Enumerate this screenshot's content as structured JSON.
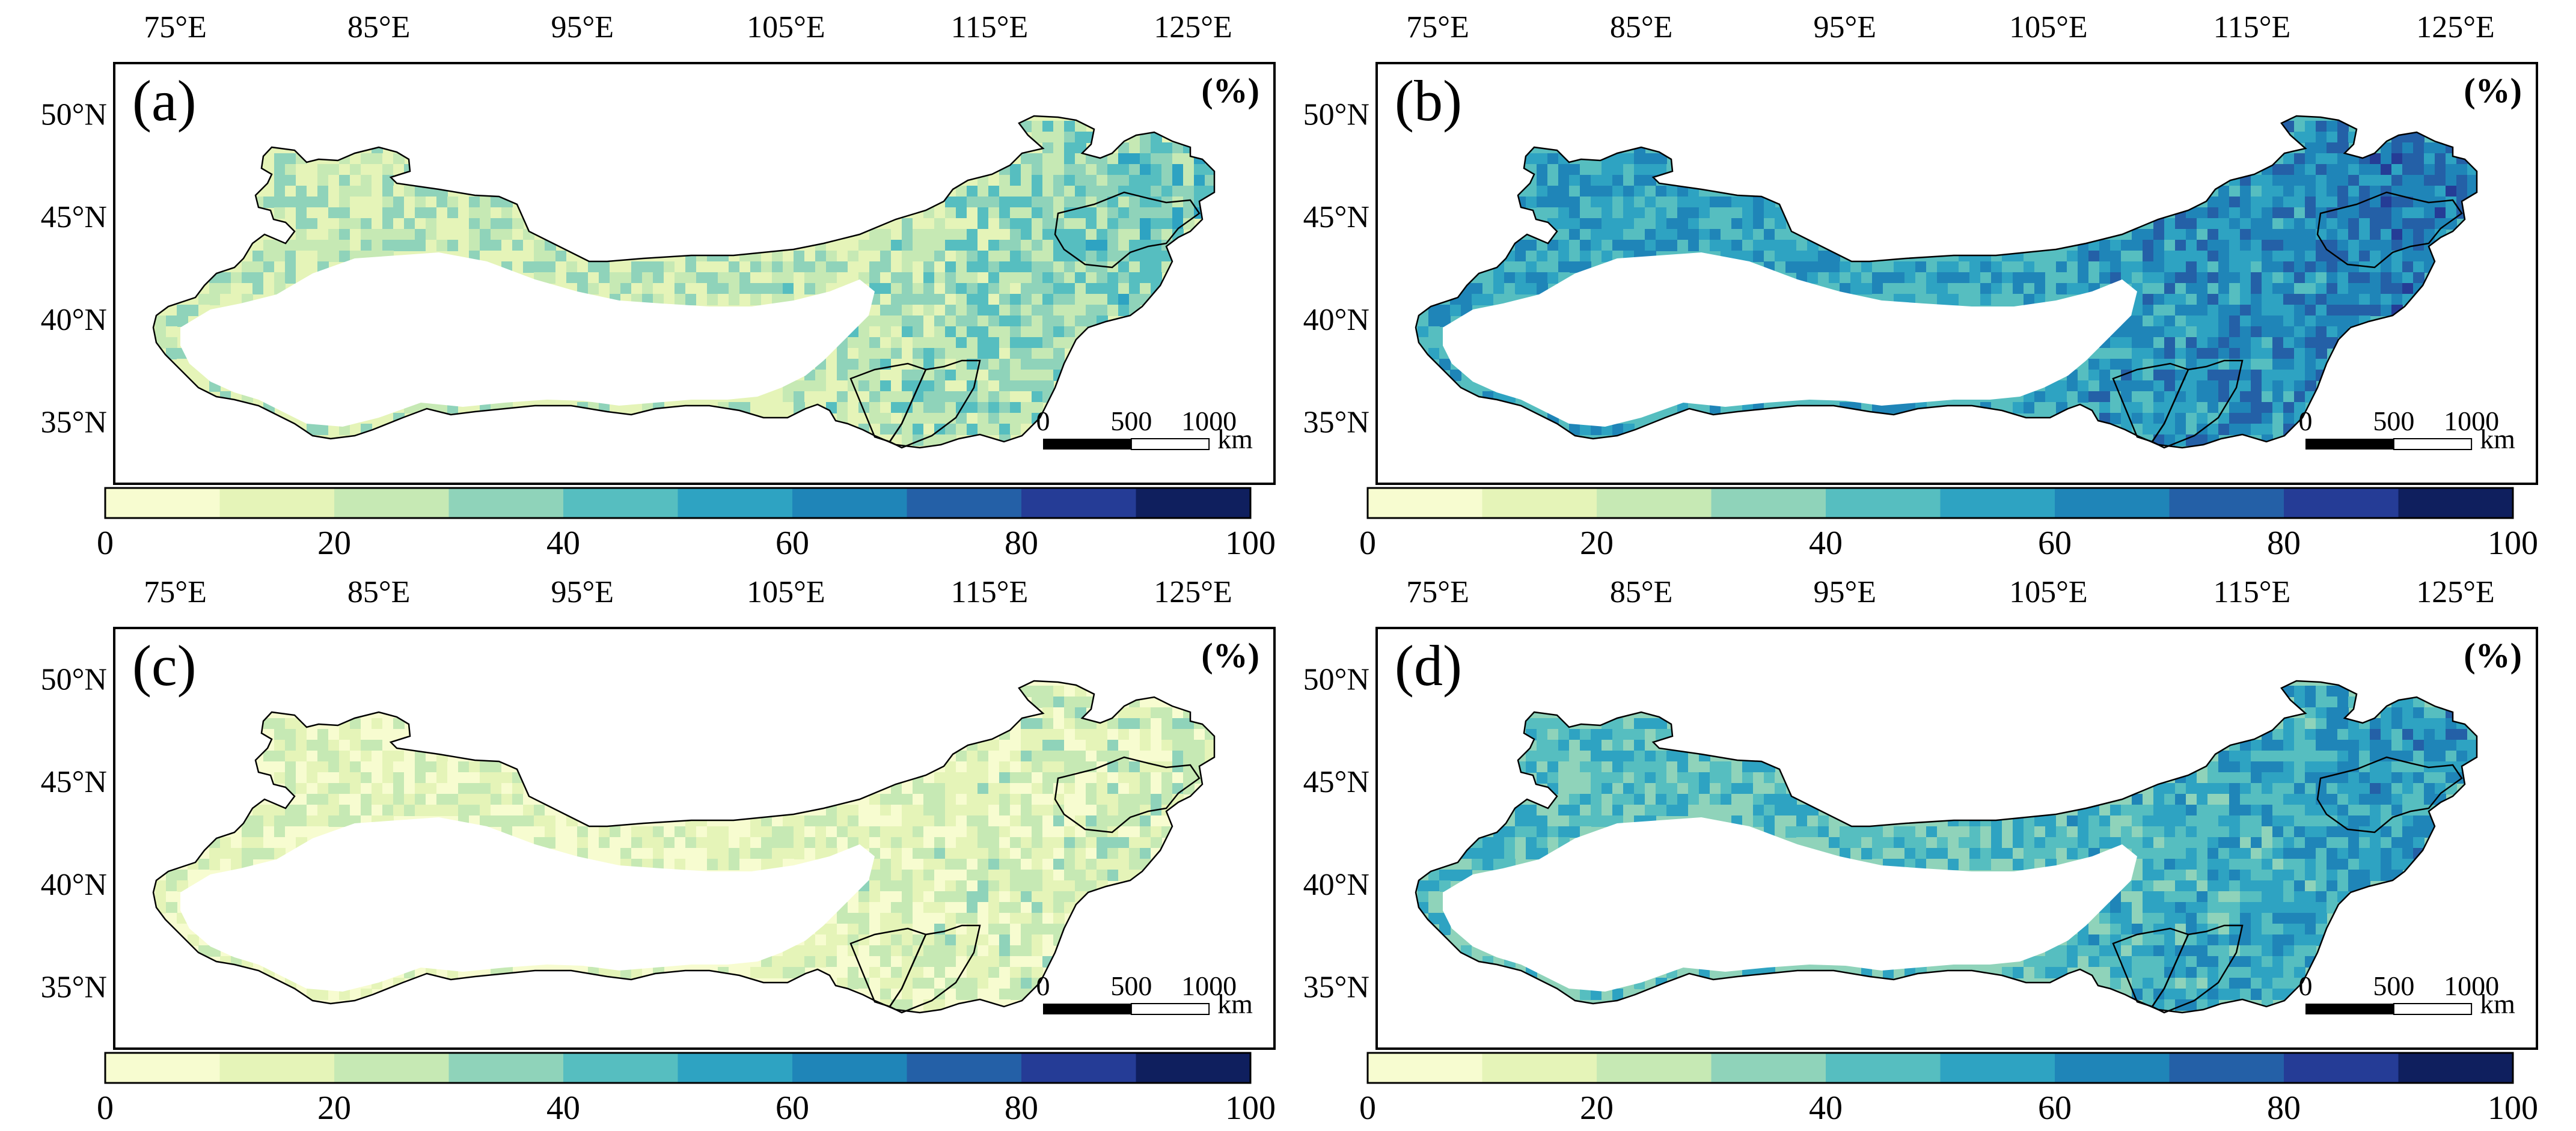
{
  "figure": {
    "lon_ticks": [
      "75°E",
      "85°E",
      "95°E",
      "105°E",
      "115°E",
      "125°E"
    ],
    "lat_ticks": [
      "50°N",
      "45°N",
      "40°N",
      "35°N"
    ],
    "unit": "(%)",
    "scale_bar": {
      "ticks": [
        "0",
        "500",
        "1000"
      ],
      "unit": "km"
    },
    "colorbar": {
      "ticks": [
        "0",
        "20",
        "40",
        "60",
        "80",
        "100"
      ],
      "min": 0,
      "max": 100,
      "step": 10,
      "colors": [
        "#f7fcd0",
        "#e5f4b8",
        "#c6e9b4",
        "#8fd3ba",
        "#56bec0",
        "#2ea3c2",
        "#1f85b8",
        "#2460a7",
        "#253c96",
        "#0f1f5e"
      ]
    },
    "panels": [
      {
        "id": "a",
        "label": "(a)",
        "mean_class": 2
      },
      {
        "id": "b",
        "label": "(b)",
        "mean_class": 5
      },
      {
        "id": "c",
        "label": "(c)",
        "mean_class": 1
      },
      {
        "id": "d",
        "label": "(d)",
        "mean_class": 4
      }
    ]
  }
}
